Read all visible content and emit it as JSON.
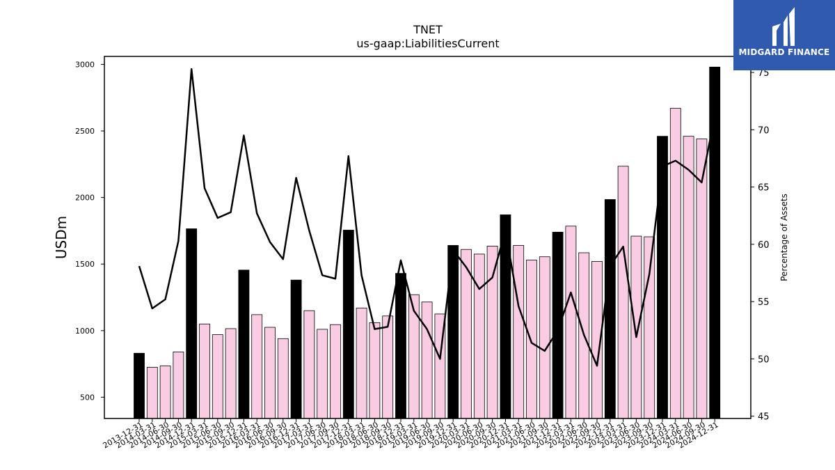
{
  "chart_data": {
    "type": "bar",
    "title": "TNET",
    "subtitle": "us-gaap:LiabilitiesCurrent",
    "ylabel": "USDm",
    "ylabel_right": "Percentage of Assets",
    "ylim": [
      340,
      3060
    ],
    "ylim_right": [
      44.8,
      76.4
    ],
    "yticks": [
      500,
      1000,
      1500,
      2000,
      2500,
      3000
    ],
    "yticks_right": [
      45,
      50,
      55,
      60,
      65,
      70,
      75
    ],
    "categories": [
      "2013-12-31",
      "2014-03-31",
      "2014-06-30",
      "2014-09-30",
      "2014-12-31",
      "2015-03-31",
      "2015-06-30",
      "2015-09-30",
      "2015-12-31",
      "2016-03-31",
      "2016-06-30",
      "2016-09-30",
      "2016-12-31",
      "2017-03-31",
      "2017-06-30",
      "2017-09-30",
      "2017-12-31",
      "2018-03-31",
      "2018-06-30",
      "2018-09-30",
      "2018-12-31",
      "2019-03-31",
      "2019-06-30",
      "2019-09-30",
      "2019-12-31",
      "2020-03-31",
      "2020-06-30",
      "2020-09-30",
      "2020-12-31",
      "2021-03-31",
      "2021-06-30",
      "2021-09-30",
      "2021-12-31",
      "2022-03-31",
      "2022-06-30",
      "2022-09-30",
      "2022-12-31",
      "2023-03-31",
      "2023-06-30",
      "2023-09-30",
      "2023-12-31",
      "2024-03-31",
      "2024-06-30",
      "2024-09-30",
      "2024-12-31"
    ],
    "series": [
      {
        "type": "bar",
        "values": [
          830,
          725,
          735,
          840,
          1765,
          1050,
          970,
          1015,
          1455,
          1120,
          1025,
          940,
          1380,
          1150,
          1010,
          1045,
          1755,
          1170,
          1060,
          1110,
          1430,
          1270,
          1215,
          1125,
          1640,
          1610,
          1575,
          1635,
          1870,
          1640,
          1530,
          1555,
          1740,
          1785,
          1585,
          1520,
          1985,
          2235,
          1710,
          1705,
          2460,
          2670,
          2460,
          2440,
          2980
        ],
        "colors": {
          "year_end": "#000000",
          "quarter": "#f9cce3",
          "edge": "#000000"
        }
      },
      {
        "type": "line",
        "axis": "right",
        "values": [
          58.1,
          54.4,
          55.2,
          60.3,
          75.3,
          64.9,
          62.3,
          62.8,
          69.5,
          62.7,
          60.2,
          58.7,
          65.8,
          61.2,
          57.3,
          57.0,
          67.7,
          57.3,
          52.6,
          52.8,
          58.6,
          54.2,
          52.6,
          50.0,
          59.5,
          58.0,
          56.1,
          57.1,
          61.2,
          54.6,
          51.4,
          50.7,
          52.5,
          55.8,
          52.1,
          49.4,
          58.1,
          59.8,
          51.9,
          57.4,
          66.8,
          67.3,
          66.5,
          65.4,
          71.2
        ],
        "color": "#000000"
      }
    ]
  },
  "brand": {
    "name": "MIDGARD FINANCE",
    "bg_color": "#2f5aae",
    "text_color": "#ffffff",
    "logo_icon": "midgard-logo-icon"
  }
}
